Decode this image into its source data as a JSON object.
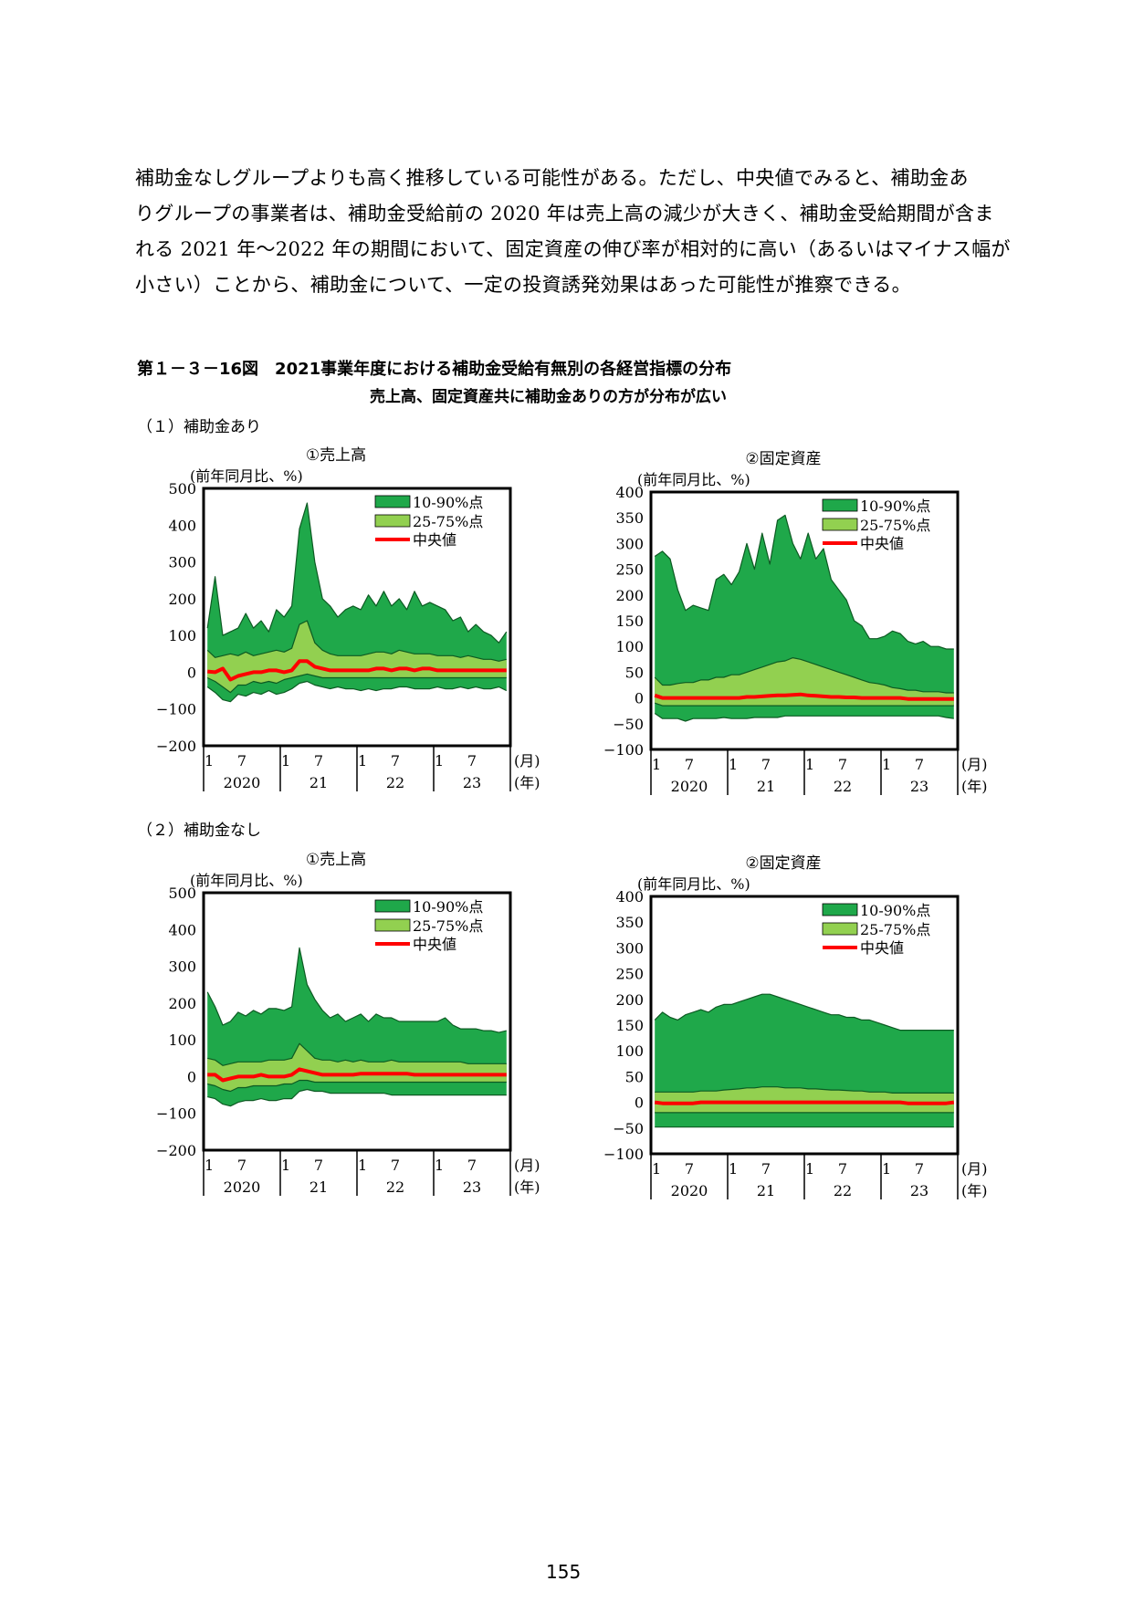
{
  "paragraph": [
    "補助金なしグループよりも高く推移している可能性がある。ただし、中央値でみると、補助金あ",
    "りグループの事業者は、補助金受給前の 2020 年は売上高の減少が大きく、補助金受給期間が含ま",
    "れる 2021 年〜2022 年の期間において、固定資産の伸び率が相対的に高い（あるいはマイナス幅が",
    "小さい）ことから、補助金について、一定の投資誘発効果はあった可能性が推察できる。"
  ],
  "figure": {
    "title": "第１－３－16図　2021事業年度における補助金受給有無別の各経営指標の分布",
    "subtitle": "売上高、固定資産共に補助金ありの方が分布が広い"
  },
  "sections": {
    "with_subsidy": "（１）補助金あり",
    "without_subsidy": "（２）補助金なし"
  },
  "page_number": "155",
  "colors": {
    "band_10_90": "#1fa84a",
    "band_25_75": "#92d050",
    "median": "#ff0000",
    "frame": "#000000"
  },
  "chart_data": [
    {
      "id": "sales_with",
      "type": "area",
      "title": "①売上高",
      "unit_label": "(前年同月比、%)",
      "ylim": [
        -200,
        500
      ],
      "yticks": [
        -200,
        -100,
        0,
        100,
        200,
        300,
        400,
        500
      ],
      "month_ticks": [
        "1",
        "7",
        "1",
        "7",
        "1",
        "7",
        "1",
        "7"
      ],
      "year_labels": [
        "2020",
        "21",
        "22",
        "23"
      ],
      "x_unit": "(月)",
      "year_unit": "(年)",
      "legend": [
        "10-90%点",
        "25-75%点",
        "中央値"
      ],
      "series": [
        {
          "name": "p10",
          "values": [
            -40,
            -55,
            -75,
            -80,
            -60,
            -65,
            -55,
            -60,
            -50,
            -60,
            -55,
            -45,
            -30,
            -25,
            -35,
            -40,
            -45,
            -40,
            -45,
            -45,
            -50,
            -45,
            -50,
            -45,
            -45,
            -40,
            -40,
            -45,
            -45,
            -45,
            -40,
            -45,
            -45,
            -40,
            -45,
            -40,
            -45,
            -45,
            -40,
            -50
          ]
        },
        {
          "name": "p25",
          "values": [
            -15,
            -25,
            -40,
            -55,
            -35,
            -35,
            -25,
            -30,
            -25,
            -30,
            -20,
            -15,
            -10,
            -5,
            -10,
            -15,
            -15,
            -15,
            -15,
            -15,
            -15,
            -15,
            -15,
            -15,
            -15,
            -15,
            -15,
            -15,
            -15,
            -15,
            -15,
            -15,
            -15,
            -15,
            -15,
            -15,
            -15,
            -15,
            -15,
            -15
          ]
        },
        {
          "name": "median",
          "values": [
            2,
            0,
            10,
            -20,
            -10,
            -5,
            0,
            0,
            5,
            5,
            0,
            5,
            30,
            30,
            15,
            10,
            5,
            5,
            5,
            5,
            5,
            5,
            10,
            10,
            5,
            10,
            10,
            5,
            10,
            10,
            5,
            5,
            5,
            5,
            5,
            5,
            5,
            5,
            5,
            5
          ]
        },
        {
          "name": "p75",
          "values": [
            60,
            40,
            45,
            50,
            45,
            55,
            45,
            50,
            55,
            60,
            55,
            65,
            130,
            140,
            80,
            60,
            50,
            45,
            45,
            45,
            45,
            50,
            55,
            55,
            50,
            60,
            55,
            50,
            50,
            50,
            45,
            45,
            45,
            40,
            45,
            40,
            35,
            35,
            30,
            35
          ]
        },
        {
          "name": "p90",
          "values": [
            120,
            260,
            100,
            110,
            120,
            160,
            120,
            140,
            110,
            170,
            150,
            180,
            390,
            460,
            300,
            200,
            180,
            150,
            170,
            180,
            170,
            210,
            180,
            220,
            180,
            200,
            170,
            220,
            180,
            190,
            180,
            170,
            140,
            150,
            110,
            130,
            110,
            100,
            80,
            110
          ]
        }
      ]
    },
    {
      "id": "assets_with",
      "type": "area",
      "title": "②固定資産",
      "unit_label": "(前年同月比、%)",
      "ylim": [
        -100,
        400
      ],
      "yticks": [
        -100,
        -50,
        0,
        50,
        100,
        150,
        200,
        250,
        300,
        350,
        400
      ],
      "month_ticks": [
        "1",
        "7",
        "1",
        "7",
        "1",
        "7",
        "1",
        "7"
      ],
      "year_labels": [
        "2020",
        "21",
        "22",
        "23"
      ],
      "x_unit": "(月)",
      "year_unit": "(年)",
      "legend": [
        "10-90%点",
        "25-75%点",
        "中央値"
      ],
      "series": [
        {
          "name": "p10",
          "values": [
            -30,
            -40,
            -40,
            -40,
            -45,
            -40,
            -40,
            -40,
            -40,
            -38,
            -40,
            -40,
            -40,
            -38,
            -38,
            -38,
            -38,
            -35,
            -35,
            -35,
            -35,
            -35,
            -35,
            -35,
            -35,
            -35,
            -35,
            -35,
            -35,
            -35,
            -35,
            -35,
            -35,
            -35,
            -35,
            -35,
            -35,
            -35,
            -38,
            -40
          ]
        },
        {
          "name": "p25",
          "values": [
            -10,
            -15,
            -15,
            -15,
            -15,
            -15,
            -15,
            -15,
            -15,
            -15,
            -15,
            -15,
            -15,
            -15,
            -15,
            -15,
            -15,
            -15,
            -15,
            -15,
            -15,
            -15,
            -15,
            -15,
            -15,
            -15,
            -15,
            -15,
            -15,
            -15,
            -15,
            -15,
            -15,
            -15,
            -15,
            -15,
            -15,
            -15,
            -15,
            -15
          ]
        },
        {
          "name": "median",
          "values": [
            5,
            0,
            0,
            0,
            0,
            0,
            0,
            0,
            0,
            0,
            0,
            0,
            2,
            2,
            3,
            4,
            5,
            5,
            6,
            7,
            5,
            4,
            3,
            2,
            2,
            1,
            1,
            0,
            0,
            0,
            0,
            0,
            0,
            -2,
            -2,
            -2,
            -2,
            -2,
            -2,
            -2
          ]
        },
        {
          "name": "p75",
          "values": [
            40,
            25,
            25,
            28,
            30,
            30,
            35,
            35,
            40,
            40,
            45,
            45,
            50,
            55,
            60,
            65,
            70,
            72,
            78,
            75,
            70,
            65,
            60,
            55,
            50,
            45,
            40,
            35,
            30,
            28,
            25,
            20,
            18,
            15,
            15,
            12,
            12,
            12,
            10,
            10
          ]
        },
        {
          "name": "p90",
          "values": [
            275,
            285,
            270,
            210,
            170,
            180,
            175,
            170,
            230,
            240,
            220,
            245,
            300,
            250,
            320,
            260,
            345,
            355,
            300,
            270,
            320,
            270,
            290,
            230,
            210,
            190,
            150,
            140,
            115,
            115,
            120,
            130,
            125,
            110,
            105,
            110,
            100,
            100,
            95,
            95
          ]
        }
      ]
    },
    {
      "id": "sales_without",
      "type": "area",
      "title": "①売上高",
      "unit_label": "(前年同月比、%)",
      "ylim": [
        -200,
        500
      ],
      "yticks": [
        -200,
        -100,
        0,
        100,
        200,
        300,
        400,
        500
      ],
      "month_ticks": [
        "1",
        "7",
        "1",
        "7",
        "1",
        "7",
        "1",
        "7"
      ],
      "year_labels": [
        "2020",
        "21",
        "22",
        "23"
      ],
      "x_unit": "(月)",
      "year_unit": "(年)",
      "legend": [
        "10-90%点",
        "25-75%点",
        "中央値"
      ],
      "series": [
        {
          "name": "p10",
          "values": [
            -55,
            -60,
            -75,
            -80,
            -70,
            -65,
            -65,
            -60,
            -65,
            -65,
            -60,
            -60,
            -40,
            -35,
            -40,
            -40,
            -45,
            -45,
            -45,
            -45,
            -45,
            -45,
            -45,
            -45,
            -50,
            -50,
            -50,
            -50,
            -50,
            -50,
            -50,
            -50,
            -50,
            -50,
            -50,
            -50,
            -50,
            -50,
            -50,
            -50
          ]
        },
        {
          "name": "p25",
          "values": [
            -20,
            -25,
            -35,
            -40,
            -30,
            -30,
            -25,
            -25,
            -25,
            -25,
            -20,
            -20,
            -10,
            -10,
            -15,
            -15,
            -15,
            -15,
            -15,
            -15,
            -15,
            -15,
            -15,
            -15,
            -15,
            -15,
            -15,
            -15,
            -15,
            -15,
            -15,
            -15,
            -15,
            -15,
            -15,
            -15,
            -15,
            -15,
            -15,
            -15
          ]
        },
        {
          "name": "median",
          "values": [
            5,
            5,
            -10,
            -5,
            0,
            0,
            0,
            5,
            0,
            0,
            0,
            5,
            20,
            15,
            10,
            5,
            5,
            5,
            5,
            5,
            8,
            8,
            8,
            8,
            8,
            8,
            8,
            5,
            5,
            5,
            5,
            5,
            5,
            5,
            5,
            5,
            5,
            5,
            5,
            5
          ]
        },
        {
          "name": "p75",
          "values": [
            50,
            45,
            30,
            35,
            40,
            40,
            40,
            40,
            45,
            45,
            45,
            50,
            90,
            70,
            50,
            45,
            45,
            40,
            45,
            40,
            45,
            40,
            40,
            40,
            45,
            40,
            40,
            40,
            40,
            40,
            40,
            40,
            40,
            40,
            35,
            35,
            35,
            35,
            35,
            35
          ]
        },
        {
          "name": "p90",
          "values": [
            230,
            190,
            140,
            150,
            175,
            165,
            180,
            170,
            185,
            185,
            180,
            190,
            350,
            250,
            210,
            180,
            160,
            170,
            150,
            160,
            170,
            150,
            170,
            160,
            160,
            150,
            150,
            150,
            150,
            150,
            150,
            160,
            140,
            130,
            130,
            130,
            125,
            125,
            120,
            125
          ]
        }
      ]
    },
    {
      "id": "assets_without",
      "type": "area",
      "title": "②固定資産",
      "unit_label": "(前年同月比、%)",
      "ylim": [
        -100,
        400
      ],
      "yticks": [
        -100,
        -50,
        0,
        50,
        100,
        150,
        200,
        250,
        300,
        350,
        400
      ],
      "month_ticks": [
        "1",
        "7",
        "1",
        "7",
        "1",
        "7",
        "1",
        "7"
      ],
      "year_labels": [
        "2020",
        "21",
        "22",
        "23"
      ],
      "x_unit": "(月)",
      "year_unit": "(年)",
      "legend": [
        "10-90%点",
        "25-75%点",
        "中央値"
      ],
      "series": [
        {
          "name": "p10",
          "values": [
            -48,
            -48,
            -48,
            -48,
            -48,
            -48,
            -48,
            -48,
            -48,
            -48,
            -48,
            -48,
            -48,
            -48,
            -48,
            -48,
            -48,
            -48,
            -48,
            -48,
            -48,
            -48,
            -48,
            -48,
            -48,
            -48,
            -48,
            -48,
            -48,
            -48,
            -48,
            -48,
            -48,
            -48,
            -48,
            -48,
            -48,
            -48,
            -48,
            -48
          ]
        },
        {
          "name": "p25",
          "values": [
            -20,
            -20,
            -20,
            -20,
            -20,
            -20,
            -20,
            -20,
            -20,
            -20,
            -20,
            -20,
            -20,
            -20,
            -20,
            -20,
            -20,
            -20,
            -20,
            -20,
            -20,
            -20,
            -20,
            -20,
            -20,
            -20,
            -20,
            -20,
            -20,
            -20,
            -20,
            -20,
            -20,
            -20,
            -20,
            -20,
            -20,
            -20,
            -20,
            -20
          ]
        },
        {
          "name": "median",
          "values": [
            0,
            -2,
            -2,
            -2,
            -2,
            -2,
            0,
            0,
            0,
            0,
            0,
            0,
            0,
            0,
            0,
            0,
            0,
            0,
            0,
            0,
            0,
            0,
            0,
            0,
            0,
            0,
            0,
            0,
            0,
            0,
            0,
            0,
            0,
            -2,
            -2,
            -2,
            -2,
            -2,
            -2,
            0
          ]
        },
        {
          "name": "p75",
          "values": [
            20,
            20,
            20,
            20,
            20,
            20,
            22,
            22,
            22,
            24,
            25,
            26,
            28,
            28,
            30,
            30,
            30,
            28,
            28,
            28,
            26,
            26,
            25,
            24,
            24,
            23,
            22,
            22,
            20,
            20,
            20,
            18,
            18,
            18,
            18,
            18,
            18,
            18,
            18,
            18
          ]
        },
        {
          "name": "p90",
          "values": [
            160,
            175,
            165,
            160,
            170,
            175,
            180,
            175,
            185,
            190,
            190,
            195,
            200,
            205,
            210,
            210,
            205,
            200,
            195,
            190,
            185,
            180,
            175,
            170,
            170,
            165,
            165,
            160,
            160,
            155,
            150,
            145,
            140,
            140,
            140,
            140,
            140,
            140,
            140,
            140
          ]
        }
      ]
    }
  ]
}
